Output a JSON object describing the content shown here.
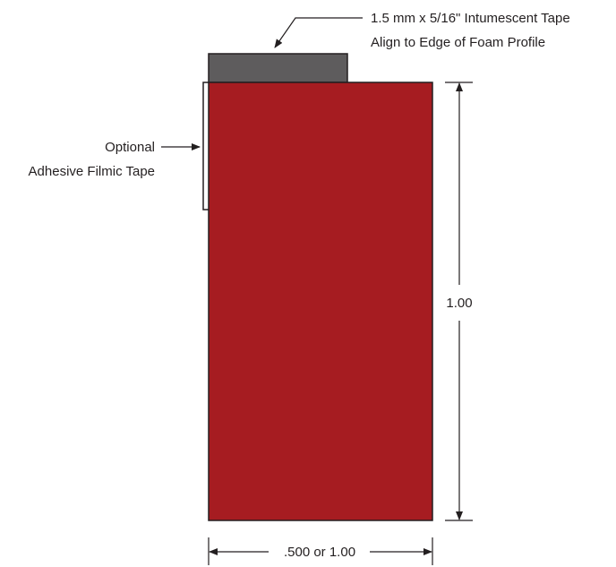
{
  "callouts": {
    "intumescent_tape_line1": "1.5 mm x 5/16\" Intumescent Tape",
    "intumescent_tape_line2": "Align to Edge of Foam Profile",
    "filmic_tape_line1": "Optional",
    "filmic_tape_line2": "Adhesive Filmic Tape"
  },
  "dimensions": {
    "height_label": "1.00",
    "width_label": ".500 or 1.00"
  },
  "colors": {
    "foam_profile": "#a61c21",
    "intumescent_tape": "#5e5c5d",
    "line": "#231f20",
    "filmic_tape": "#ffffff"
  }
}
